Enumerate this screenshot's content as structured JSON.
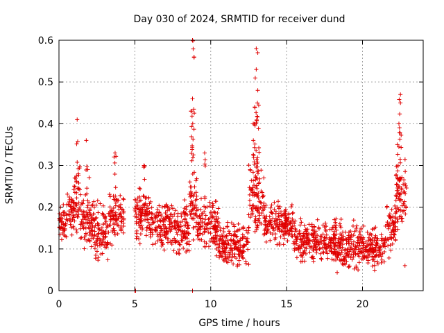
{
  "chart_data": {
    "type": "scatter",
    "title": "Day 030 of 2024, SRMTID for receiver dund",
    "xlabel": "GPS time / hours",
    "ylabel": "SRMTID / TECUs",
    "xlim": [
      0,
      24
    ],
    "ylim": [
      0,
      0.6
    ],
    "xticks": [
      0,
      5,
      10,
      15,
      20
    ],
    "yticks": [
      0,
      0.1,
      0.2,
      0.3,
      0.4,
      0.5,
      0.6
    ],
    "xtick_labels": [
      "0",
      "5",
      "10",
      "15",
      "20"
    ],
    "ytick_labels": [
      "0",
      "0.1",
      "0.2",
      "0.3",
      "0.4",
      "0.5",
      "0.6"
    ],
    "grid": true,
    "marker": "+",
    "color": "#e00000",
    "series": [
      {
        "name": "SRMTID",
        "segments": [
          {
            "x_range": [
              0.0,
              0.5
            ],
            "base": 0.16,
            "spread": 0.05
          },
          {
            "x_range": [
              0.5,
              1.0
            ],
            "base": 0.19,
            "spread": 0.06
          },
          {
            "x_range": [
              1.0,
              1.4
            ],
            "base": 0.22,
            "spread": 0.09,
            "peaks": [
              [
                1.2,
                0.41
              ]
            ]
          },
          {
            "x_range": [
              1.4,
              2.3
            ],
            "base": 0.16,
            "spread": 0.07,
            "peaks": [
              [
                1.8,
                0.36
              ],
              [
                1.9,
                0.29
              ]
            ]
          },
          {
            "x_range": [
              2.3,
              3.3
            ],
            "base": 0.14,
            "spread": 0.07
          },
          {
            "x_range": [
              3.3,
              4.3
            ],
            "base": 0.18,
            "spread": 0.06,
            "peaks": [
              [
                3.7,
                0.33
              ]
            ]
          },
          {
            "x_range": [
              5.0,
              6.0
            ],
            "base": 0.18,
            "spread": 0.06,
            "peaks": [
              [
                5.6,
                0.3
              ]
            ]
          },
          {
            "x_range": [
              6.0,
              7.5
            ],
            "base": 0.16,
            "spread": 0.06
          },
          {
            "x_range": [
              7.5,
              8.6
            ],
            "base": 0.14,
            "spread": 0.07
          },
          {
            "x_range": [
              8.6,
              9.1
            ],
            "base": 0.2,
            "spread": 0.08,
            "peaks": [
              [
                8.8,
                0.6
              ],
              [
                8.9,
                0.56
              ],
              [
                8.8,
                0.46
              ],
              [
                8.7,
                0.43
              ]
            ]
          },
          {
            "x_range": [
              9.1,
              10.5
            ],
            "base": 0.16,
            "spread": 0.07,
            "peaks": [
              [
                9.6,
                0.33
              ]
            ]
          },
          {
            "x_range": [
              10.5,
              12.5
            ],
            "base": 0.11,
            "spread": 0.05
          },
          {
            "x_range": [
              12.5,
              13.5
            ],
            "base": 0.22,
            "spread": 0.09,
            "peaks": [
              [
                13.0,
                0.58
              ],
              [
                13.1,
                0.57
              ],
              [
                13.0,
                0.53
              ],
              [
                13.1,
                0.48
              ],
              [
                12.9,
                0.44
              ],
              [
                12.8,
                0.4
              ]
            ]
          },
          {
            "x_range": [
              13.5,
              15.5
            ],
            "base": 0.16,
            "spread": 0.05
          },
          {
            "x_range": [
              15.5,
              18.3
            ],
            "base": 0.12,
            "spread": 0.05
          },
          {
            "x_range": [
              18.3,
              20.0
            ],
            "base": 0.11,
            "spread": 0.06
          },
          {
            "x_range": [
              20.0,
              21.5
            ],
            "base": 0.1,
            "spread": 0.05
          },
          {
            "x_range": [
              21.5,
              22.2
            ],
            "base": 0.15,
            "spread": 0.06
          },
          {
            "x_range": [
              22.2,
              22.9
            ],
            "base": 0.22,
            "spread": 0.08,
            "peaks": [
              [
                22.5,
                0.47
              ],
              [
                22.5,
                0.45
              ],
              [
                22.4,
                0.4
              ],
              [
                22.3,
                0.35
              ]
            ]
          }
        ],
        "outliers": [
          [
            5.0,
            0.0
          ],
          [
            5.05,
            0.0
          ],
          [
            8.8,
            0.0
          ],
          [
            22.8,
            0.06
          ]
        ]
      }
    ]
  }
}
